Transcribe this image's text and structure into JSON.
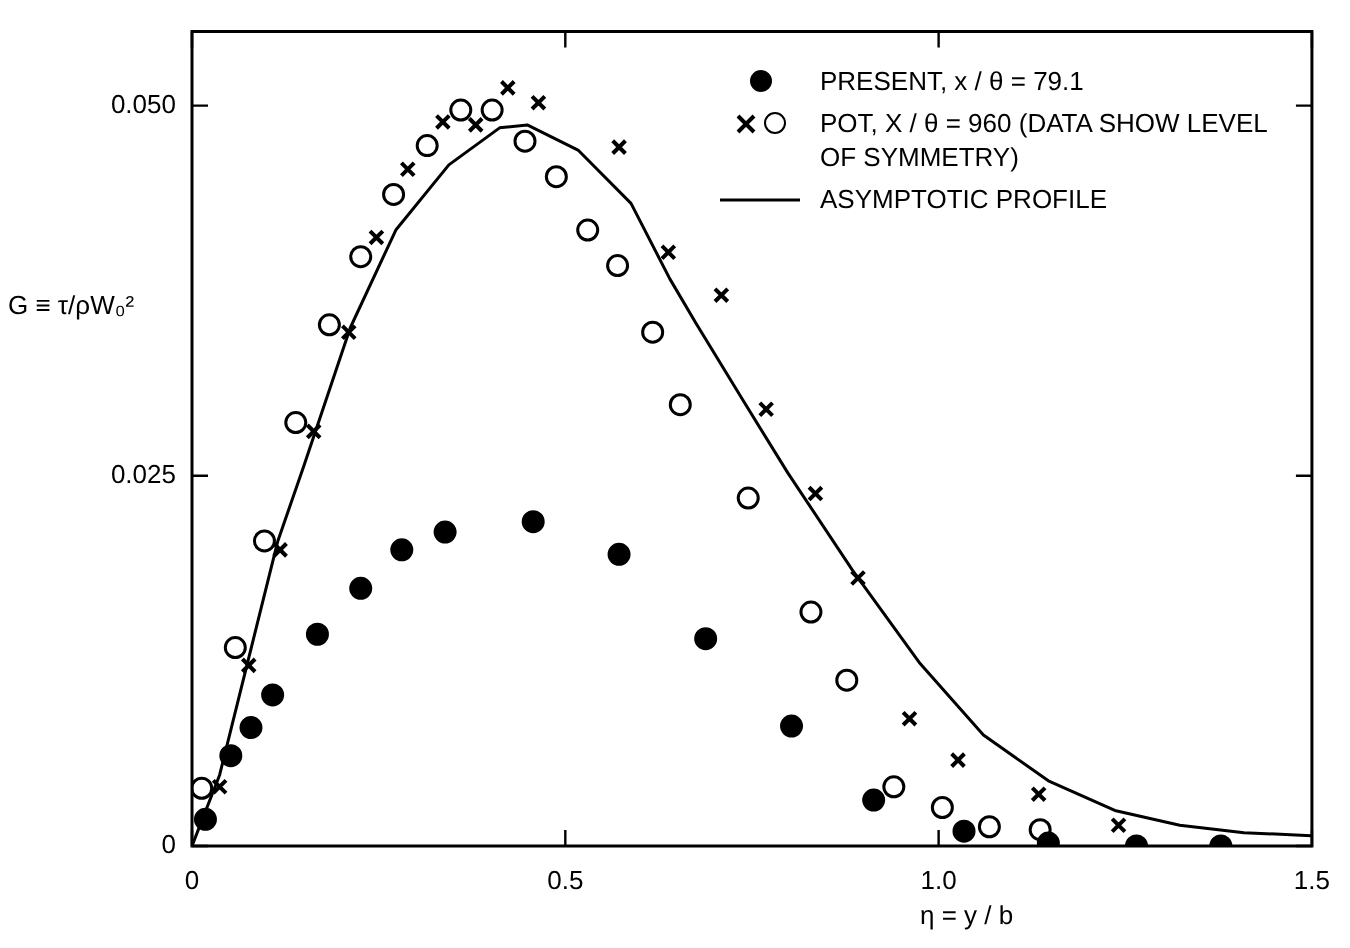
{
  "chart_data": {
    "type": "scatter",
    "xlabel": "η = y / b",
    "ylabel": "G ≡ τ/ρW₀²",
    "xlim": [
      0,
      1.5
    ],
    "xticks": [
      0,
      0.5,
      {
        "value": 1,
        "label": "1.0"
      },
      1.5
    ],
    "ylim": [
      0,
      0.055
    ],
    "yticks": [
      0,
      0.025,
      {
        "value": 0.05,
        "label": "0.050"
      }
    ],
    "grid": false,
    "legend": "top right",
    "series": [
      {
        "name": "PRESENT, x / θ = 79.1",
        "color": "#000000",
        "marker": "circle",
        "x": [
          0.018,
          0.052,
          0.079,
          0.108,
          0.168,
          0.226,
          0.281,
          0.339,
          0.457,
          0.572,
          0.688,
          0.803,
          0.913,
          1.034,
          1.147,
          1.265,
          1.378
        ],
        "values": [
          0.0018,
          0.0061,
          0.008,
          0.0102,
          0.0143,
          0.0174,
          0.02,
          0.0212,
          0.0219,
          0.0197,
          0.014,
          0.0081,
          0.0031,
          0.001,
          0.0002,
          0,
          0
        ]
      },
      {
        "name": "POT, X / θ = 960 (DATA SHOW LEVEL OF SYMMETRY)",
        "color": "#ffffff",
        "marker": "circle",
        "x": [
          0.013,
          0.058,
          0.097,
          0.139,
          0.184,
          0.226,
          0.27,
          0.315,
          0.36,
          0.402,
          0.446,
          0.488,
          0.53,
          0.57,
          0.617,
          0.654,
          0.745,
          0.829,
          0.877,
          0.94,
          1.005,
          1.068,
          1.136
        ],
        "values": [
          0.0039,
          0.0134,
          0.0206,
          0.0286,
          0.0352,
          0.0398,
          0.044,
          0.0473,
          0.0497,
          0.0497,
          0.0476,
          0.0452,
          0.0416,
          0.0392,
          0.0347,
          0.0298,
          0.0235,
          0.0158,
          0.0112,
          0.004,
          0.0026,
          0.0013,
          0.0011
        ]
      },
      {
        "color": "#000000",
        "marker": "cross",
        "x": [
          0.037,
          0.076,
          0.118,
          0.163,
          0.21,
          0.247,
          0.289,
          0.336,
          0.38,
          0.423,
          0.464,
          0.572,
          0.638,
          0.709,
          0.769,
          0.835,
          0.892,
          0.961,
          1.026,
          1.134,
          1.241
        ],
        "values": [
          0.004,
          0.0122,
          0.02,
          0.028,
          0.0347,
          0.0411,
          0.0457,
          0.0489,
          0.0487,
          0.0512,
          0.0502,
          0.0472,
          0.0401,
          0.0372,
          0.0295,
          0.0238,
          0.0181,
          0.0086,
          0.0058,
          0.0035,
          0.0014
        ]
      },
      {
        "name": "ASYMPTOTIC PROFILE",
        "type": "line",
        "color": "#000000",
        "marker": "none",
        "line_style": "solid",
        "x": [
          0,
          0.037,
          0.115,
          0.15,
          0.212,
          0.273,
          0.344,
          0.412,
          0.449,
          0.517,
          0.588,
          0.64,
          0.675,
          0.738,
          0.798,
          0.885,
          0.974,
          1.06,
          1.147,
          1.236,
          1.323,
          1.409,
          1.499
        ],
        "values": [
          0,
          0.0048,
          0.0206,
          0.0257,
          0.035,
          0.0416,
          0.046,
          0.0485,
          0.0487,
          0.047,
          0.0434,
          0.0383,
          0.0353,
          0.0301,
          0.0252,
          0.0186,
          0.0124,
          0.0075,
          0.0044,
          0.0024,
          0.0014,
          0.0009,
          0.0007
        ]
      }
    ]
  }
}
